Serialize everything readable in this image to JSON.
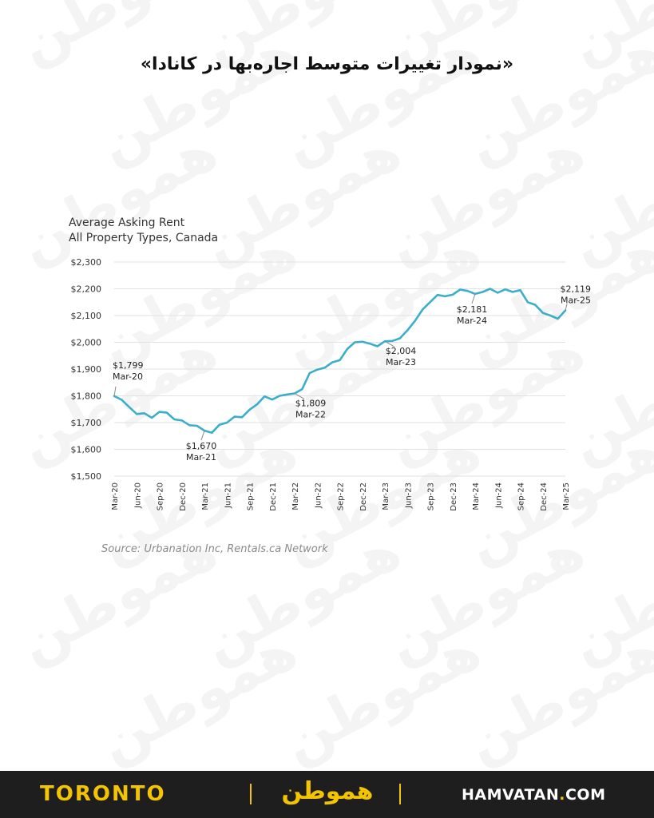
{
  "headline": "«نمودار تغییرات متوسط اجاره‌بها در کانادا»",
  "watermark_text": "هموطن",
  "chart_data": {
    "type": "line",
    "title": "Average Asking Rent",
    "subtitle": "All Property Types, Canada",
    "xlabel": "",
    "ylabel": "",
    "ylim": [
      1500,
      2300
    ],
    "yticks": [
      "$1,500",
      "$1,600",
      "$1,700",
      "$1,800",
      "$1,900",
      "$2,000",
      "$2,100",
      "$2,200",
      "$2,300"
    ],
    "ytick_values": [
      1500,
      1600,
      1700,
      1800,
      1900,
      2000,
      2100,
      2200,
      2300
    ],
    "xtick_labels": [
      "Mar-20",
      "Jun-20",
      "Sep-20",
      "Dec-20",
      "Mar-21",
      "Jun-21",
      "Sep-21",
      "Dec-21",
      "Mar-22",
      "Jun-22",
      "Sep-22",
      "Dec-22",
      "Mar-23",
      "Jun-23",
      "Sep-23",
      "Dec-23",
      "Mar-24",
      "Jun-24",
      "Sep-24",
      "Dec-24",
      "Mar-25"
    ],
    "grid": true,
    "line_color": "#3aaecb",
    "series": [
      {
        "values": [
          1799,
          1785,
          1758,
          1732,
          1735,
          1718,
          1740,
          1737,
          1712,
          1708,
          1690,
          1688,
          1670,
          1662,
          1692,
          1700,
          1722,
          1720,
          1748,
          1768,
          1798,
          1786,
          1800,
          1805,
          1809,
          1825,
          1885,
          1898,
          1905,
          1925,
          1933,
          1975,
          2000,
          2002,
          1995,
          1985,
          2004,
          2005,
          2015,
          2045,
          2080,
          2122,
          2150,
          2177,
          2172,
          2178,
          2197,
          2192,
          2181,
          2188,
          2200,
          2185,
          2198,
          2188,
          2195,
          2150,
          2140,
          2110,
          2100,
          2088,
          2119
        ]
      }
    ],
    "annotations": [
      {
        "value": "$1,799",
        "date": "Mar-20",
        "index": 0,
        "pos": "above"
      },
      {
        "value": "$1,670",
        "date": "Mar-21",
        "index": 12,
        "pos": "below"
      },
      {
        "value": "$1,809",
        "date": "Mar-22",
        "index": 24,
        "pos": "below-right"
      },
      {
        "value": "$2,004",
        "date": "Mar-23",
        "index": 36,
        "pos": "below-right"
      },
      {
        "value": "$2,181",
        "date": "Mar-24",
        "index": 48,
        "pos": "below"
      },
      {
        "value": "$2,119",
        "date": "Mar-25",
        "index": 60,
        "pos": "above"
      }
    ]
  },
  "source": "Source: Urbanation Inc, Rentals.ca Network",
  "footer": {
    "city": "TORONTO",
    "logo": "هموطن",
    "site_main": "HAMVATAN",
    "site_dot": ".",
    "site_tld": "COM"
  },
  "colors": {
    "accent": "#f5c400",
    "footer_bg": "#1e1e1e",
    "line": "#3aaecb"
  }
}
